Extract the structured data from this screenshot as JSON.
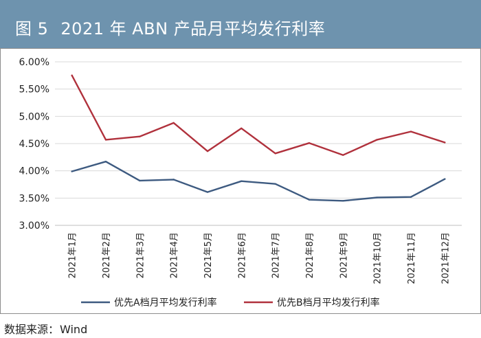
{
  "header": {
    "figure_label": "图 5",
    "title": "2021 年 ABN 产品月平均发行利率"
  },
  "source": {
    "label": "数据来源：",
    "value": "Wind"
  },
  "chart_data": {
    "type": "line",
    "title": "",
    "xlabel": "",
    "ylabel": "",
    "categories": [
      "2021年1月",
      "2021年2月",
      "2021年3月",
      "2021年4月",
      "2021年5月",
      "2021年6月",
      "2021年7月",
      "2021年8月",
      "2021年9月",
      "2021年10月",
      "2021年11月",
      "2021年12月"
    ],
    "y_ticks": [
      "6.00%",
      "5.50%",
      "5.00%",
      "4.50%",
      "4.00%",
      "3.50%",
      "3.00%"
    ],
    "y_tick_values": [
      6.0,
      5.5,
      5.0,
      4.5,
      4.0,
      3.5,
      3.0
    ],
    "ylim": [
      3.0,
      6.0
    ],
    "grid": true,
    "legend_position": "bottom",
    "series": [
      {
        "name": "优先A档月平均发行利率",
        "color": "#3d5a80",
        "values": [
          3.99,
          4.17,
          3.82,
          3.84,
          3.61,
          3.81,
          3.76,
          3.47,
          3.45,
          3.51,
          3.52,
          3.85
        ]
      },
      {
        "name": "优先B档月平均发行利率",
        "color": "#b0313c",
        "values": [
          5.75,
          4.57,
          4.63,
          4.88,
          4.36,
          4.78,
          4.32,
          4.51,
          4.29,
          4.57,
          4.72,
          4.52
        ]
      }
    ]
  }
}
